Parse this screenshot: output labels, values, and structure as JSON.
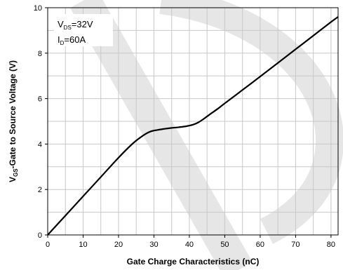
{
  "chart_data": {
    "type": "line",
    "xlabel": "Gate Charge Characteristics (nC)",
    "ylabel": {
      "v": "V",
      "sub": "GS",
      "rest": "-Gate to Source Voltage (V)"
    },
    "xlim": [
      0,
      82
    ],
    "ylim": [
      0,
      10
    ],
    "xticks": [
      0,
      10,
      20,
      30,
      40,
      50,
      60,
      70,
      80
    ],
    "yticks": [
      0,
      2,
      4,
      6,
      8,
      10
    ],
    "x_minor_step": 5,
    "y_minor_step": 1,
    "grid": true,
    "annotations": [
      {
        "main": "V",
        "sub": "DS",
        "rest": "=32V"
      },
      {
        "main": "I",
        "sub": "D",
        "rest": "=60A"
      }
    ],
    "series": [
      {
        "x": [
          0,
          5,
          10,
          15,
          20,
          24,
          27,
          29,
          31,
          33,
          35,
          37,
          39,
          41,
          42.5,
          44,
          46,
          48,
          50,
          55,
          60,
          65,
          70,
          75,
          80,
          82
        ],
        "y": [
          0,
          0.85,
          1.7,
          2.55,
          3.4,
          4.02,
          4.38,
          4.55,
          4.62,
          4.67,
          4.71,
          4.74,
          4.78,
          4.85,
          4.95,
          5.1,
          5.33,
          5.55,
          5.79,
          6.38,
          6.97,
          7.57,
          8.17,
          8.77,
          9.37,
          9.6
        ]
      }
    ],
    "colors": {
      "line": "#000000",
      "grid": "#c8c8c8",
      "watermark": "#e6e6e6"
    }
  }
}
